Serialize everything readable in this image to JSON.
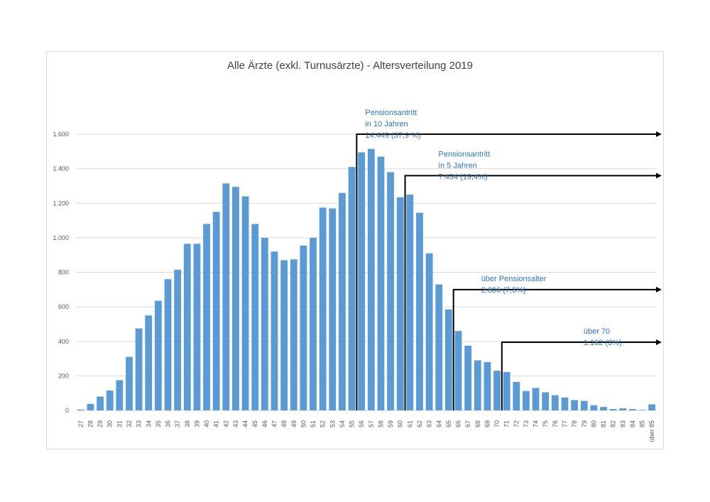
{
  "chart_data": {
    "type": "bar",
    "title": "Alle Ärzte (exkl. Turnusärzte) - Altersverteilung 2019",
    "xlabel": "",
    "ylabel": "",
    "ylim": [
      0,
      1600
    ],
    "yticks": [
      0,
      200,
      400,
      600,
      800,
      1000,
      1200,
      1400,
      1600
    ],
    "ytick_labels": [
      "0",
      "200",
      "400",
      "600",
      "800",
      "1.000",
      "1.200",
      "1.400",
      "1.600"
    ],
    "grid": true,
    "legend": "none",
    "bar_color": "#5b9bd5",
    "categories": [
      "27",
      "28",
      "29",
      "30",
      "31",
      "32",
      "33",
      "34",
      "35",
      "36",
      "37",
      "38",
      "39",
      "40",
      "41",
      "42",
      "43",
      "44",
      "45",
      "46",
      "47",
      "48",
      "49",
      "50",
      "51",
      "52",
      "53",
      "54",
      "55",
      "56",
      "57",
      "58",
      "59",
      "60",
      "61",
      "62",
      "63",
      "64",
      "65",
      "66",
      "67",
      "68",
      "69",
      "70",
      "71",
      "72",
      "73",
      "74",
      "75",
      "76",
      "77",
      "78",
      "79",
      "80",
      "81",
      "82",
      "83",
      "84",
      "85",
      "über 85"
    ],
    "values": [
      5,
      38,
      80,
      115,
      175,
      310,
      475,
      550,
      635,
      760,
      815,
      965,
      965,
      1080,
      1150,
      1315,
      1295,
      1240,
      1080,
      1000,
      920,
      870,
      875,
      955,
      1000,
      1175,
      1170,
      1260,
      1410,
      1495,
      1515,
      1470,
      1380,
      1235,
      1250,
      1145,
      910,
      730,
      585,
      460,
      375,
      290,
      280,
      230,
      222,
      165,
      112,
      130,
      105,
      88,
      75,
      60,
      55,
      30,
      20,
      8,
      12,
      8,
      3,
      35
    ],
    "annotations": [
      {
        "lines": [
          "Pensionsantritt",
          "in 10 Jahren",
          "14.449 (37,9 %)"
        ],
        "from_category": "56",
        "level": 1600
      },
      {
        "lines": [
          "Pensionsantritt",
          "in 5 Jahren",
          "7.434 (19,4%)"
        ],
        "from_category": "61",
        "level": 1360
      },
      {
        "lines": [
          "über Pensionsalter",
          "2.806 (7,3%)"
        ],
        "from_category": "66",
        "level": 700
      },
      {
        "lines": [
          "über 70",
          "1.162 (3%)"
        ],
        "from_category": "71",
        "level": 395
      }
    ]
  }
}
